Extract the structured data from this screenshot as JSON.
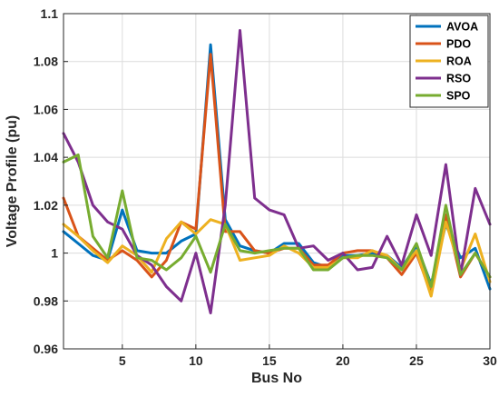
{
  "chart_data": {
    "type": "line",
    "title": "",
    "xlabel": "Bus No",
    "ylabel": "Voltage Profile (pu)",
    "xlim": [
      1,
      30
    ],
    "ylim": [
      0.96,
      1.1
    ],
    "x_ticks": [
      5,
      10,
      15,
      20,
      25,
      30
    ],
    "x_tick_labels": [
      "5",
      "10",
      "15",
      "20",
      "25",
      "30"
    ],
    "y_ticks": [
      0.96,
      0.98,
      1.0,
      1.02,
      1.04,
      1.06,
      1.08,
      1.1
    ],
    "y_tick_labels": [
      "0.96",
      "0.98",
      "1",
      "1.02",
      "1.04",
      "1.06",
      "1.08",
      "1.1"
    ],
    "grid": true,
    "legend_position": "top-right",
    "x": [
      1,
      2,
      3,
      4,
      5,
      6,
      7,
      8,
      9,
      10,
      11,
      12,
      13,
      14,
      15,
      16,
      17,
      18,
      19,
      20,
      21,
      22,
      23,
      24,
      25,
      26,
      27,
      28,
      29,
      30
    ],
    "series": [
      {
        "name": "AVOA",
        "color": "#0072BD",
        "values": [
          1.009,
          1.004,
          0.999,
          0.997,
          1.018,
          1.001,
          1.0,
          1.0,
          1.005,
          1.008,
          1.087,
          1.014,
          1.003,
          1.001,
          1.0,
          1.004,
          1.004,
          0.996,
          0.994,
          0.999,
          0.999,
          1.0,
          0.999,
          0.994,
          1.003,
          0.987,
          1.012,
          0.998,
          1.002,
          0.985
        ]
      },
      {
        "name": "PDO",
        "color": "#D95319",
        "values": [
          1.023,
          1.007,
          1.002,
          0.997,
          1.001,
          0.997,
          0.99,
          0.997,
          1.013,
          1.01,
          1.083,
          1.009,
          1.009,
          1.001,
          1.0,
          1.002,
          1.002,
          0.995,
          0.995,
          1.0,
          1.001,
          1.001,
          0.998,
          0.991,
          1.0,
          0.983,
          1.016,
          0.99,
          1.0,
          0.99
        ]
      },
      {
        "name": "ROA",
        "color": "#EDB120",
        "values": [
          1.012,
          1.007,
          1.001,
          0.996,
          1.003,
          0.999,
          0.992,
          1.006,
          1.013,
          1.008,
          1.014,
          1.012,
          0.997,
          0.998,
          0.999,
          1.003,
          1.0,
          0.994,
          0.994,
          0.998,
          0.998,
          1.001,
          0.999,
          0.993,
          1.001,
          0.982,
          1.013,
          0.993,
          1.008,
          0.988
        ]
      },
      {
        "name": "RSO",
        "color": "#7E2F8E",
        "values": [
          1.05,
          1.038,
          1.02,
          1.013,
          1.01,
          0.999,
          0.995,
          0.986,
          0.98,
          1.0,
          0.975,
          1.02,
          1.093,
          1.023,
          1.018,
          1.016,
          1.002,
          1.003,
          0.997,
          1.0,
          0.993,
          0.994,
          1.007,
          0.995,
          1.016,
          0.999,
          1.037,
          0.991,
          1.027,
          1.012
        ]
      },
      {
        "name": "SPO",
        "color": "#77AC30",
        "values": [
          1.038,
          1.041,
          1.007,
          0.998,
          1.026,
          0.998,
          0.997,
          0.993,
          0.998,
          1.007,
          0.992,
          1.012,
          1.001,
          1.0,
          1.001,
          1.002,
          1.002,
          0.993,
          0.993,
          0.998,
          0.999,
          0.999,
          0.998,
          0.993,
          1.004,
          0.986,
          1.02,
          0.991,
          1.0,
          0.99
        ]
      }
    ]
  }
}
